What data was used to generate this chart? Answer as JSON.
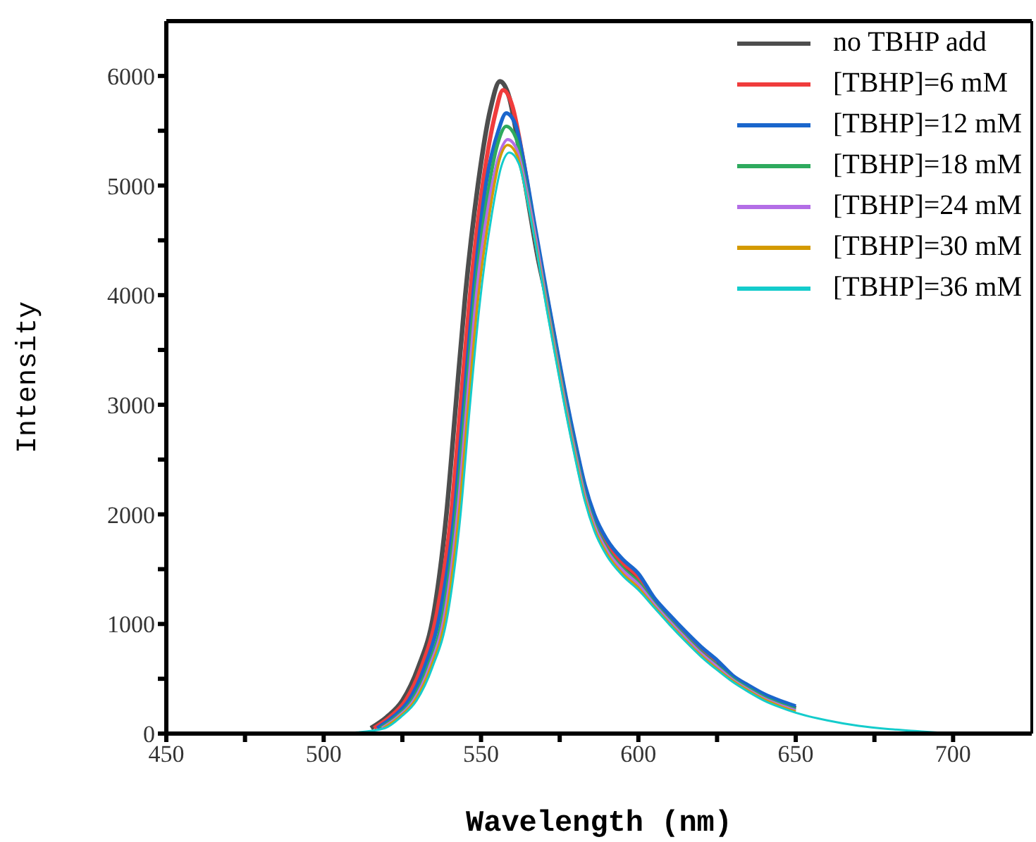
{
  "chart_data": {
    "type": "line",
    "xlabel": "Wavelength (nm)",
    "ylabel": "Intensity",
    "xlim": [
      450,
      725
    ],
    "ylim": [
      0,
      6500
    ],
    "xticks": [
      450,
      {
        "value": 475,
        "label": null
      },
      500,
      {
        "value": 525,
        "label": null
      },
      550,
      {
        "value": 575,
        "label": null
      },
      600,
      {
        "value": 625,
        "label": null
      },
      650,
      {
        "value": 675,
        "label": null
      },
      700
    ],
    "yticks": [
      0,
      {
        "value": 500,
        "label": null
      },
      1000,
      {
        "value": 1500,
        "label": null
      },
      2000,
      {
        "value": 2500,
        "label": null
      },
      3000,
      {
        "value": 3500,
        "label": null
      },
      4000,
      {
        "value": 4500,
        "label": null
      },
      5000,
      {
        "value": 5500,
        "label": null
      },
      6000
    ],
    "legend": "top right",
    "marker": "none",
    "line_style": "solid",
    "series": [
      {
        "name": "no TBHP add",
        "color": "#4d4d4d",
        "x": [
          515,
          520,
          525,
          530,
          535,
          539,
          542,
          545,
          549,
          553,
          556,
          559,
          562,
          565,
          568,
          571,
          574,
          577,
          580,
          583,
          586,
          590,
          595,
          600,
          605,
          610,
          615,
          620,
          625,
          630,
          635,
          640,
          645,
          650
        ],
        "values": [
          50,
          150,
          300,
          600,
          1100,
          2000,
          3000,
          4000,
          5000,
          5700,
          5950,
          5800,
          5350,
          4850,
          4350,
          3950,
          3480,
          3020,
          2600,
          2220,
          1950,
          1720,
          1540,
          1410,
          1210,
          1050,
          900,
          760,
          640,
          510,
          420,
          340,
          280,
          230
        ]
      },
      {
        "name": "[TBHP]=6 mM",
        "color": "#f03c3c",
        "x": [
          516,
          521,
          526,
          531,
          536,
          540.5,
          543.5,
          546.5,
          550.5,
          554.5,
          557,
          560,
          563,
          566,
          568,
          571,
          574,
          577,
          580,
          583,
          586,
          590,
          595,
          600,
          605,
          610,
          615,
          620,
          625
        ],
        "values": [
          50,
          150,
          300,
          600,
          1100,
          2000,
          3000,
          4000,
          5000,
          5650,
          5870,
          5720,
          5300,
          4780,
          4400,
          3970,
          3500,
          3040,
          2620,
          2240,
          1970,
          1740,
          1560,
          1430,
          1220,
          1060,
          910,
          770,
          650
        ]
      },
      {
        "name": "[TBHP]=12 mM",
        "color": "#1a66cc",
        "x": [
          517,
          522,
          527,
          532,
          537,
          541.5,
          544.5,
          547.5,
          551.5,
          555.5,
          558,
          561,
          564,
          567,
          571,
          574,
          577,
          580,
          583,
          586,
          590,
          595,
          600,
          605,
          610,
          615,
          620,
          625,
          630,
          635,
          640,
          645,
          650
        ],
        "values": [
          50,
          150,
          300,
          600,
          1100,
          2000,
          3000,
          4000,
          5000,
          5500,
          5660,
          5550,
          5150,
          4650,
          4000,
          3530,
          3070,
          2650,
          2270,
          2000,
          1770,
          1590,
          1460,
          1240,
          1080,
          930,
          790,
          670,
          530,
          440,
          360,
          300,
          250
        ]
      },
      {
        "name": "[TBHP]=18 mM",
        "color": "#2eaa5e",
        "x": [
          518,
          523,
          528,
          533,
          538,
          542,
          545,
          548,
          552,
          555.5,
          558,
          561,
          564,
          567,
          571,
          574,
          577,
          580,
          583,
          586,
          590,
          595,
          600,
          605,
          610,
          615,
          620,
          625,
          630,
          635,
          640,
          645,
          650
        ],
        "values": [
          50,
          150,
          300,
          600,
          1100,
          2000,
          3000,
          4000,
          4900,
          5400,
          5540,
          5440,
          5050,
          4580,
          3920,
          3450,
          2990,
          2570,
          2190,
          1920,
          1690,
          1510,
          1380,
          1190,
          1030,
          880,
          740,
          620,
          500,
          410,
          330,
          270,
          220
        ]
      },
      {
        "name": "[TBHP]=24 mM",
        "color": "#b36ee6",
        "x": [
          518.5,
          523.5,
          528.5,
          533.5,
          538.5,
          542.5,
          545.5,
          548.5,
          552.5,
          556,
          558.5,
          561.5,
          564.5,
          567.5,
          571,
          574,
          577,
          580,
          583,
          586,
          590,
          595,
          600,
          605,
          610,
          615,
          620,
          625,
          630,
          635,
          640,
          645,
          650
        ],
        "values": [
          50,
          150,
          300,
          600,
          1100,
          2000,
          3000,
          4000,
          4850,
          5300,
          5420,
          5320,
          4950,
          4500,
          3900,
          3430,
          2970,
          2550,
          2170,
          1900,
          1670,
          1490,
          1360,
          1180,
          1020,
          870,
          730,
          610,
          490,
          400,
          320,
          260,
          210
        ]
      },
      {
        "name": "[TBHP]=30 mM",
        "color": "#d49a00",
        "x": [
          519,
          524,
          529,
          534,
          539,
          543,
          546,
          549,
          553,
          556,
          558.5,
          561.5,
          564.5,
          567.5,
          571,
          574,
          577,
          580,
          583,
          586,
          590,
          595,
          600,
          605,
          610,
          615,
          620,
          625,
          630,
          635,
          640,
          645,
          650
        ],
        "values": [
          50,
          150,
          300,
          600,
          1100,
          2000,
          3000,
          3950,
          4800,
          5250,
          5370,
          5270,
          4900,
          4450,
          3870,
          3400,
          2940,
          2520,
          2140,
          1870,
          1640,
          1460,
          1330,
          1160,
          1000,
          850,
          710,
          590,
          480,
          390,
          310,
          250,
          200
        ]
      },
      {
        "name": "[TBHP]=36 mM",
        "color": "#14cccc",
        "x": [
          480,
          500,
          510,
          519.5,
          524.5,
          529.5,
          534.5,
          539.5,
          543.5,
          546.5,
          549.5,
          553.5,
          556.5,
          559,
          562,
          565,
          568,
          571,
          574,
          577,
          580,
          583,
          586,
          590,
          595,
          600,
          605,
          610,
          615,
          620,
          625,
          630,
          635,
          640,
          645,
          650,
          660,
          670,
          680,
          690,
          700
        ],
        "values": [
          0,
          0,
          10,
          50,
          150,
          300,
          600,
          1100,
          2000,
          3000,
          3900,
          4750,
          5180,
          5300,
          5200,
          4820,
          4350,
          3850,
          3380,
          2920,
          2500,
          2120,
          1850,
          1620,
          1440,
          1310,
          1150,
          990,
          840,
          700,
          580,
          470,
          380,
          300,
          240,
          190,
          120,
          70,
          40,
          20,
          0
        ]
      }
    ]
  }
}
